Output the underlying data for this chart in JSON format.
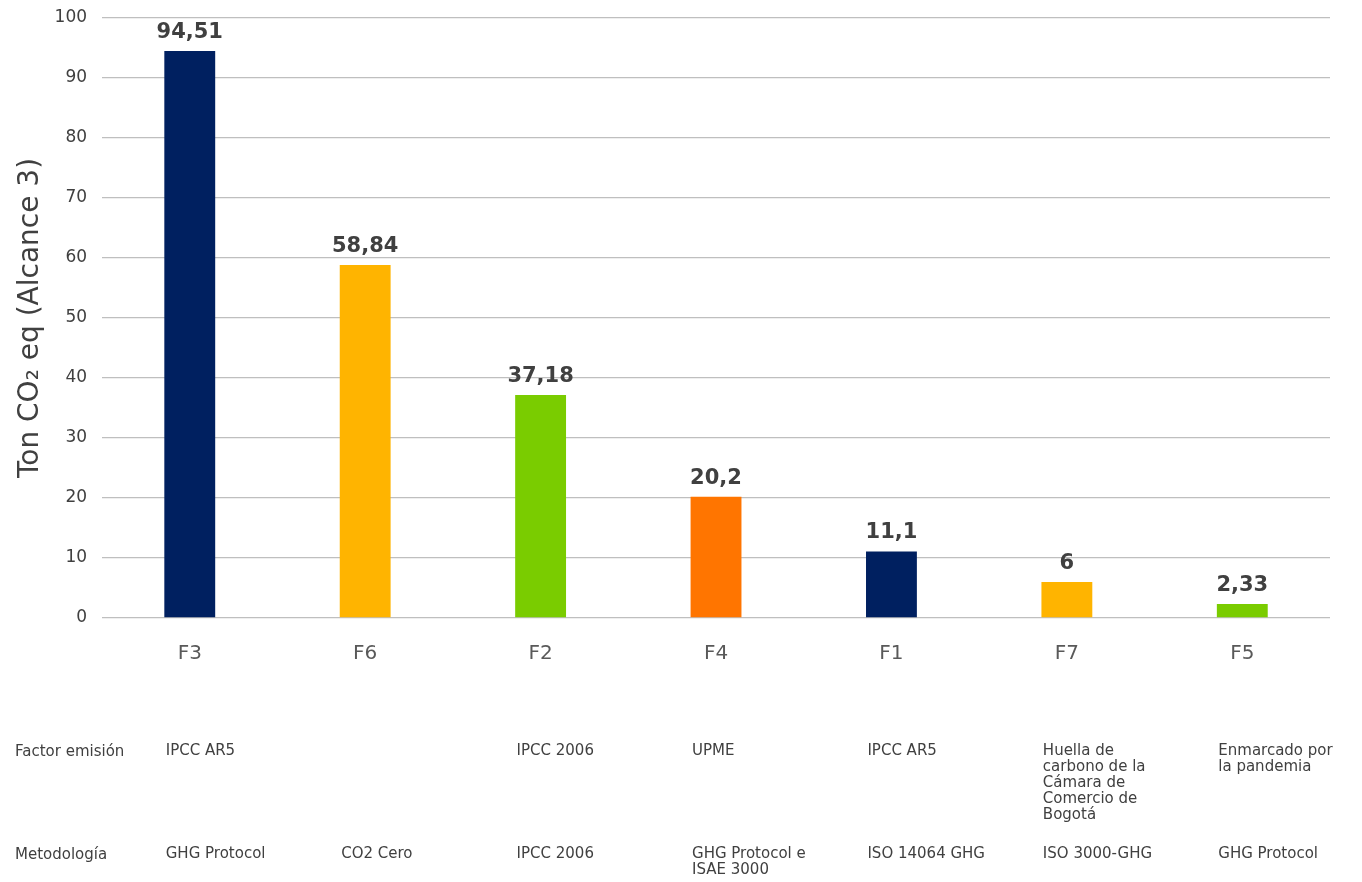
{
  "chart_data": {
    "type": "bar",
    "ylabel": "Ton CO₂ eq (Alcance 3)",
    "categories": [
      "F3",
      "F6",
      "F2",
      "F4",
      "F1",
      "F7",
      "F5"
    ],
    "values": [
      94.51,
      58.84,
      37.18,
      20.2,
      11.1,
      6,
      2.33
    ],
    "colors": [
      "#002060",
      "#ffb400",
      "#7acc00",
      "#ff7500",
      "#002060",
      "#ffb400",
      "#7acc00"
    ],
    "value_labels": [
      "94,51",
      "58,84",
      "37,18",
      "20,2",
      "11,1",
      "6",
      "2,33"
    ],
    "ylim": [
      0,
      100
    ],
    "yticks": [
      0,
      10,
      20,
      30,
      40,
      50,
      60,
      70,
      80,
      90,
      100
    ],
    "grid": "y",
    "legend": false,
    "annotations": [
      "Factor emisión",
      "IPCC AR5",
      "IPCC 2006",
      "UPME",
      "IPCC AR5",
      "Huella de carbono de la Cámara de Comercio de Bogotá",
      "Enmarcado por la pandemia",
      "Metodología",
      "GHG Protocol",
      "CO2 Cero",
      "IPCC 2006",
      "GHG Protocol e ISAE 3000",
      "ISO 14064 GHG",
      "ISO 3000-GHG",
      "GHG Protocol"
    ]
  }
}
